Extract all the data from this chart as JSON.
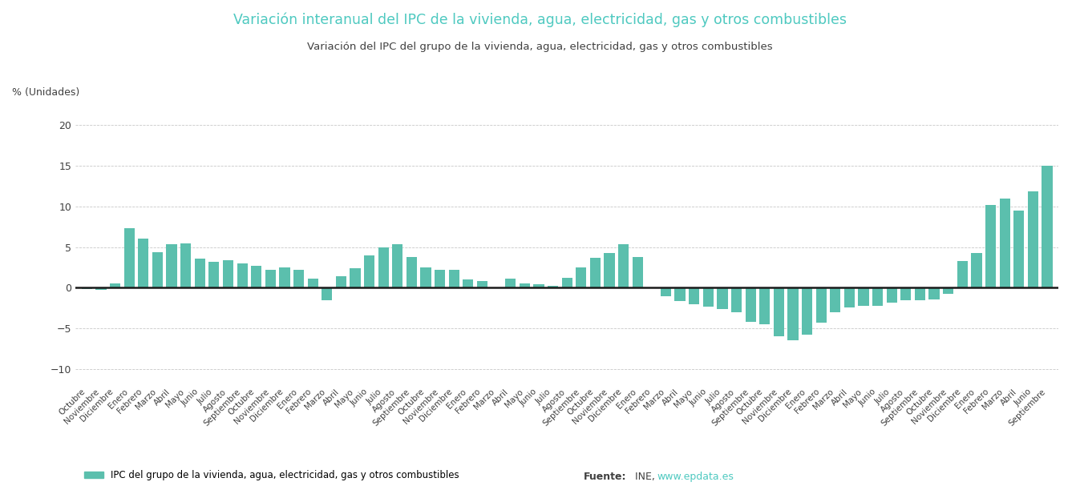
{
  "title": "Variación interanual del IPC de la vivienda, agua, electricidad, gas y otros combustibles",
  "subtitle": "Variación del IPC del grupo de la vivienda, agua, electricidad, gas y otros combustibles",
  "ylabel": "% (Unidades)",
  "bar_color": "#5bbfad",
  "background_color": "#ffffff",
  "grid_color": "#c8c8c8",
  "ylim": [
    -12,
    22
  ],
  "yticks": [
    -10,
    -5,
    0,
    5,
    10,
    15,
    20
  ],
  "legend_label": "IPC del grupo de la vivienda, agua, electricidad, gas y otros combustibles",
  "title_color": "#4ec9c0",
  "subtitle_color": "#404040",
  "values": [
    -0.2,
    -0.3,
    0.5,
    7.3,
    6.0,
    4.4,
    5.3,
    5.4,
    3.6,
    3.2,
    3.4,
    3.0,
    2.7,
    2.2,
    2.5,
    2.2,
    1.1,
    -1.5,
    1.4,
    2.4,
    4.0,
    5.0,
    5.3,
    3.8,
    2.5,
    2.2,
    2.2,
    1.0,
    0.8,
    -0.1,
    1.1,
    0.5,
    0.4,
    0.2,
    1.2,
    2.5,
    3.7,
    4.3,
    5.3,
    3.8,
    -0.1,
    -1.1,
    -1.6,
    -2.0,
    -2.3,
    -2.6,
    -3.0,
    -4.2,
    -4.5,
    -6.0,
    -6.5,
    -5.8,
    -4.3,
    -3.0,
    -2.4,
    -2.2,
    -2.2,
    -1.8,
    -1.5,
    -1.5,
    -1.4,
    -0.8,
    3.3,
    4.3,
    10.2,
    11.0,
    9.5,
    11.8,
    15.0
  ],
  "xtick_labels": [
    "Octubre",
    "Noviembre",
    "Diciembre",
    "Enero",
    "Febrero",
    "Marzo",
    "Abril",
    "Mayo",
    "Junio",
    "Julio",
    "Agosto",
    "Septiembre",
    "Octubre",
    "Noviembre",
    "Diciembre",
    "Enero",
    "Febrero",
    "Marzo",
    "Abril",
    "Mayo",
    "Junio",
    "Julio",
    "Agosto",
    "Septiembre",
    "Octubre",
    "Noviembre",
    "Diciembre",
    "Enero",
    "Febrero",
    "Marzo",
    "Abril",
    "Mayo",
    "Junio",
    "Julio",
    "Agosto",
    "Septiembre",
    "Octubre",
    "Noviembre",
    "Diciembre",
    "Enero",
    "Febrero",
    "Marzo",
    "Abril",
    "Mayo",
    "Junio",
    "Julio",
    "Agosto",
    "Septiembre",
    "Octubre",
    "Noviembre",
    "Diciembre",
    "Enero",
    "Febrero",
    "Marzo",
    "Abril",
    "Mayo",
    "Junio",
    "Julio",
    "Agosto",
    "Septiembre",
    "Octubre",
    "Noviembre",
    "Diciembre",
    "Enero",
    "Febrero",
    "Marzo",
    "Abril",
    "Junio",
    "Septiembre"
  ]
}
